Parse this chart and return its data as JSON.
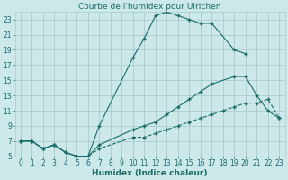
{
  "title": "Courbe de l'humidex pour Ulrichen",
  "xlabel": "Humidex (Indice chaleur)",
  "xlim": [
    -0.5,
    23.5
  ],
  "ylim": [
    5,
    24
  ],
  "background_color": "#cce8e8",
  "grid_color": "#aacccc",
  "line_color": "#1a6b6b",
  "line1": {
    "x": [
      0,
      1,
      2,
      3,
      4,
      5,
      6,
      7,
      10,
      11,
      12,
      13,
      14,
      15,
      16,
      17,
      19,
      20
    ],
    "y": [
      7,
      7,
      6,
      6.5,
      5.5,
      5,
      5,
      9,
      18,
      20.5,
      23.5,
      24,
      23.5,
      23,
      22.5,
      22.5,
      19,
      18.5
    ],
    "linestyle": "-",
    "marker": "+"
  },
  "line2": {
    "x": [
      0,
      1,
      2,
      3,
      4,
      5,
      6,
      7,
      10,
      11,
      12,
      13,
      14,
      15,
      16,
      17,
      19,
      20,
      21,
      22,
      23
    ],
    "y": [
      7,
      7,
      6,
      6.5,
      5.5,
      5,
      5,
      6.5,
      8.5,
      9,
      9.5,
      10.5,
      11.5,
      12.5,
      13.5,
      14.5,
      15.5,
      15.5,
      13,
      11,
      10
    ],
    "linestyle": "-",
    "marker": "+"
  },
  "line3": {
    "x": [
      0,
      1,
      2,
      3,
      4,
      5,
      6,
      7,
      10,
      11,
      12,
      13,
      14,
      15,
      16,
      17,
      18,
      19,
      20,
      21,
      22,
      23
    ],
    "y": [
      7,
      7,
      6,
      6.5,
      5.5,
      5,
      5,
      6,
      7.5,
      7.5,
      8,
      8.5,
      9,
      9.5,
      10,
      10.5,
      11,
      11.5,
      12,
      12,
      12.5,
      10
    ],
    "linestyle": "--",
    "marker": "+"
  },
  "xticks": [
    0,
    1,
    2,
    3,
    4,
    5,
    6,
    7,
    8,
    9,
    10,
    11,
    12,
    13,
    14,
    15,
    16,
    17,
    18,
    19,
    20,
    21,
    22,
    23
  ],
  "yticks": [
    5,
    7,
    9,
    11,
    13,
    15,
    17,
    19,
    21,
    23
  ],
  "tick_fontsize": 5.5,
  "label_fontsize": 6.5,
  "title_fontsize": 6.5
}
